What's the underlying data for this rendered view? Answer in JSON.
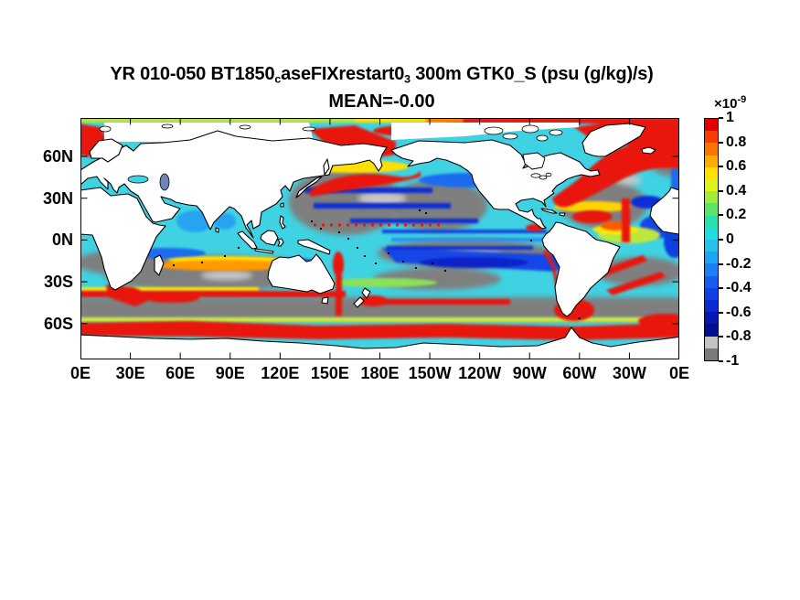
{
  "title": {
    "line1_segments": [
      {
        "text": "YR 010-050 BT1850",
        "sub": false
      },
      {
        "text": "c",
        "sub": true
      },
      {
        "text": "aseFIXrestart0",
        "sub": false
      },
      {
        "text": "3",
        "sub": true
      },
      {
        "text": " 300m GTK0_S (psu (g/kg)/s)",
        "sub": false
      }
    ],
    "line2": "MEAN=-0.00"
  },
  "axes": {
    "x_tick_labels": [
      "0E",
      "30E",
      "60E",
      "90E",
      "120E",
      "150E",
      "180E",
      "150W",
      "120W",
      "90W",
      "60W",
      "30W",
      "0E"
    ],
    "y_tick_labels": [
      "60N",
      "30N",
      "0N",
      "30S",
      "60S"
    ]
  },
  "colorbar": {
    "exponent_prefix": "×10",
    "exponent_power": "-9",
    "tick_labels": [
      "1",
      "0.8",
      "0.6",
      "0.4",
      "0.2",
      "0",
      "-0.2",
      "-0.4",
      "-0.6",
      "-0.8",
      "-1"
    ],
    "segment_colors": [
      "#e00000",
      "#fa3c00",
      "#ff7400",
      "#ffab00",
      "#ffe000",
      "#dff21e",
      "#a0ec38",
      "#5ce465",
      "#2adfae",
      "#1edde4",
      "#22c4ee",
      "#1ea4f4",
      "#1a80f6",
      "#165cf0",
      "#1140e8",
      "#0b2ad2",
      "#0718b2",
      "#040e90",
      "#c3c3c3",
      "#7a7a7a"
    ]
  },
  "chart_data": {
    "type": "heatmap",
    "title": "YR 010-050 BT1850_caseFIXrestart0_3 300m GTK0_S (psu (g/kg)/s)",
    "subtitle": "MEAN=-0.00",
    "variable": "GTK0_S",
    "units": "(psu (g/kg)/s)",
    "depth": "300m",
    "year_range": "010-050",
    "mean": "-0.00",
    "projection": "global lat-lon map, longitude 0E eastward to 0E, latitude ~87N to ~86S",
    "x_axis": {
      "label": "longitude",
      "ticks": [
        "0E",
        "30E",
        "60E",
        "90E",
        "120E",
        "150E",
        "180E",
        "150W",
        "120W",
        "90W",
        "60W",
        "30W",
        "0E"
      ]
    },
    "y_axis": {
      "label": "latitude",
      "ticks": [
        "60N",
        "30N",
        "0N",
        "30S",
        "60S"
      ]
    },
    "color_scale": {
      "min": -1e-09,
      "max": 1e-09,
      "tick_values": [
        1,
        0.8,
        0.6,
        0.4,
        0.2,
        0,
        -0.2,
        -0.4,
        -0.6,
        -0.8,
        -1
      ],
      "scale_factor": "1e-9",
      "colormap": "jet-like (red high to navy low); lowest two bins (-0.8 to -1) light/dark gray"
    },
    "land_mask": "continents white with black coastlines; Arctic and Antarctic interiors white",
    "prominent_features": [
      "Circumpolar Southern Ocean band near 50-60S strongly positive (red) with yellow fringes",
      "Second thinner positive (red) band ~40S across Indian Ocean sector",
      "Kuroshio extension east of Japan strongly positive (red)",
      "Gulf Stream and subpolar North Atlantic strongly positive (red), Norwegian Sea red patch",
      "Subtropical gyres (N Pacific, S Pacific, S Indian, N and S Atlantic) saturated negative (gray) with dark-blue streaks and light-gray cores",
      "Equatorial Pacific alternating cyan/blue zonal bands with dotted red tropical-instability signal near the equator",
      "Vertical red streak near 155E (East Australian Current extension) and near 35W equatorial Atlantic",
      "Thin red coastal strip along Peru-Chile coast and Brazil-Malvinas confluence",
      "Most remaining open ocean weakly negative (cyan)"
    ]
  }
}
